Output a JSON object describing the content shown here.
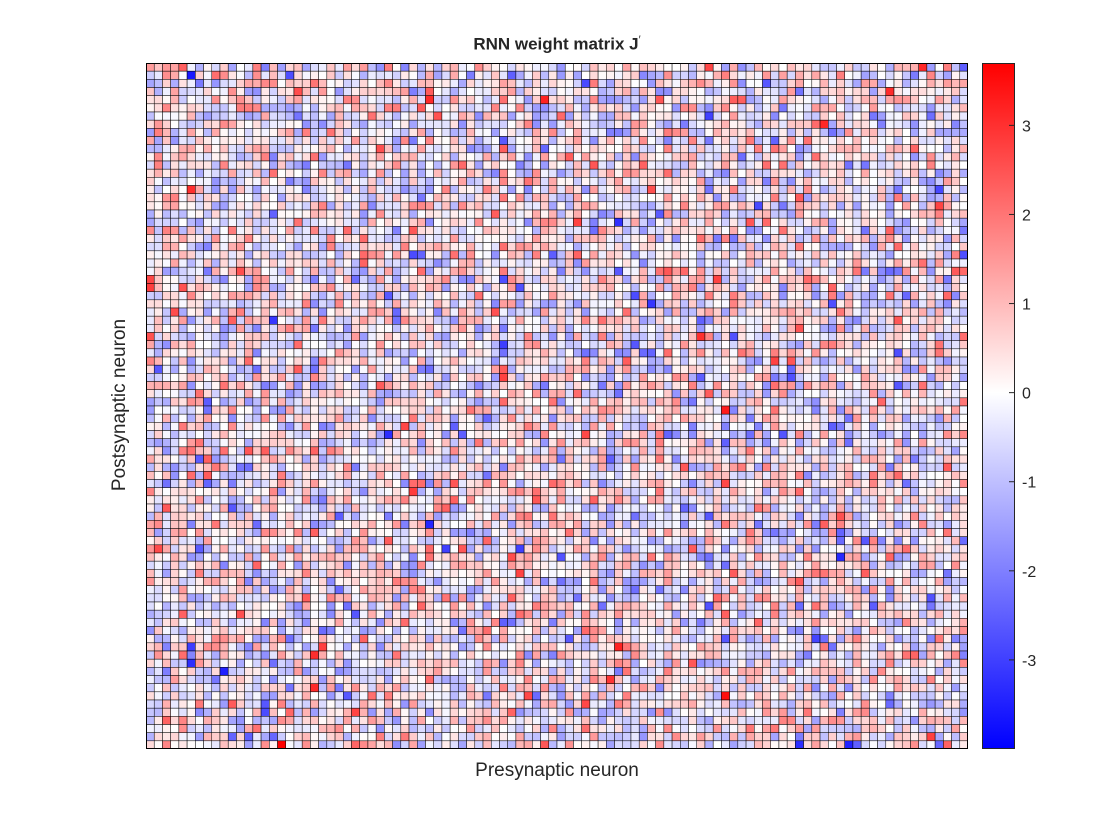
{
  "chart_data": {
    "type": "heatmap",
    "title": "RNN weight matrix J",
    "title_prime": "′",
    "xlabel": "Presynaptic neuron",
    "ylabel": "Postsynaptic neuron",
    "rows": 84,
    "cols": 100,
    "grid": true,
    "colormap": [
      "#0000ff",
      "#ffffff",
      "#ff0000"
    ],
    "color_limits": [
      -4,
      3.7
    ],
    "colorbar": {
      "ticks": [
        3,
        2,
        1,
        0,
        -1,
        -2,
        -3
      ],
      "tick_labels": [
        "3",
        "2",
        "1",
        "0",
        "-1",
        "-2",
        "-3"
      ],
      "placement": "right"
    },
    "value_distribution": {
      "type": "normal",
      "mean": 0,
      "std": 1,
      "seed": 7
    },
    "notable_values": [
      {
        "row": 1,
        "col": 5,
        "value": -3.6
      },
      {
        "row": 4,
        "col": 48,
        "value": 3.2
      },
      {
        "row": 45,
        "col": 29,
        "value": -3.3
      },
      {
        "row": 77,
        "col": 70,
        "value": 3.5
      },
      {
        "row": 74,
        "col": 9,
        "value": -3.5
      },
      {
        "row": 27,
        "col": 0,
        "value": 2.8
      },
      {
        "row": 25,
        "col": 98,
        "value": 2.4
      }
    ]
  }
}
